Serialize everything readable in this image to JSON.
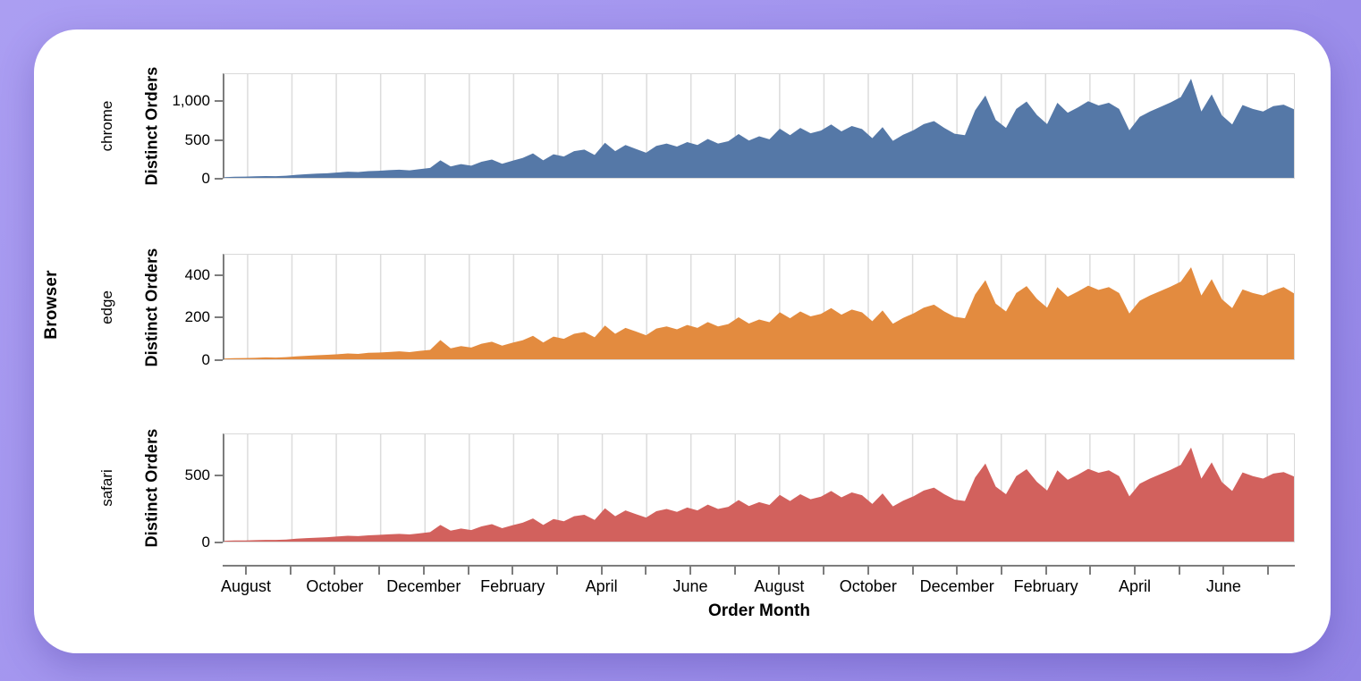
{
  "page": {
    "background_start": "#ab9ef2",
    "background_end": "#9385e6",
    "card_color": "#ffffff"
  },
  "chart_data": {
    "type": "area",
    "title": "",
    "facet_title": "Browser",
    "xlabel": "Order Month",
    "ylabel": "Distinct Orders",
    "point_interval": "weekly",
    "x_range_hint": "mid-July year 1 through mid-July year 3 (about 24.5 months)",
    "x_months_total": 24,
    "x_tick_labels": [
      "August",
      "October",
      "December",
      "February",
      "April",
      "June",
      "August",
      "October",
      "December",
      "February",
      "April",
      "June"
    ],
    "grid": "vertical month gridlines only",
    "legend_position": "none (facet labels on left)",
    "colors": {
      "gridline": "#dcdcdc",
      "axis": "#7d7d7d",
      "plot_border": "#d9d9d9",
      "text": "#000000"
    },
    "facets": [
      {
        "label": "chrome",
        "color": "#5578a7",
        "ylim": [
          0,
          1360
        ],
        "yticks": [
          {
            "value": 0,
            "label": "0"
          },
          {
            "value": 500,
            "label": "500"
          },
          {
            "value": 1000,
            "label": "1,000"
          }
        ],
        "values": [
          10,
          14,
          16,
          20,
          24,
          22,
          28,
          40,
          48,
          55,
          60,
          70,
          80,
          76,
          88,
          92,
          100,
          108,
          98,
          115,
          130,
          230,
          150,
          180,
          160,
          210,
          240,
          185,
          225,
          260,
          320,
          230,
          310,
          280,
          350,
          370,
          300,
          460,
          350,
          430,
          380,
          330,
          420,
          450,
          410,
          470,
          430,
          510,
          450,
          480,
          575,
          490,
          545,
          505,
          645,
          560,
          655,
          585,
          620,
          700,
          610,
          680,
          640,
          520,
          665,
          485,
          565,
          625,
          705,
          745,
          655,
          580,
          560,
          885,
          1080,
          760,
          655,
          905,
          1000,
          825,
          705,
          985,
          855,
          925,
          1005,
          950,
          985,
          905,
          625,
          800,
          870,
          930,
          990,
          1060,
          1300,
          870,
          1095,
          820,
          700,
          955,
          905,
          870,
          940,
          960,
          900
        ]
      },
      {
        "label": "edge",
        "color": "#e38b3f",
        "ylim": [
          0,
          500
        ],
        "yticks": [
          {
            "value": 0,
            "label": "0"
          },
          {
            "value": 200,
            "label": "200"
          },
          {
            "value": 400,
            "label": "400"
          }
        ],
        "values": [
          4,
          5,
          6,
          7,
          9,
          8,
          10,
          14,
          17,
          19,
          21,
          24,
          28,
          26,
          31,
          32,
          35,
          38,
          34,
          40,
          45,
          92,
          52,
          63,
          56,
          74,
          84,
          65,
          79,
          91,
          112,
          80,
          108,
          98,
          122,
          130,
          105,
          161,
          122,
          150,
          133,
          115,
          147,
          157,
          143,
          164,
          150,
          178,
          157,
          168,
          201,
          171,
          190,
          177,
          225,
          196,
          229,
          205,
          217,
          245,
          213,
          238,
          224,
          182,
          233,
          170,
          198,
          219,
          247,
          261,
          229,
          203,
          196,
          310,
          378,
          266,
          229,
          317,
          350,
          289,
          247,
          345,
          299,
          324,
          352,
          332,
          345,
          317,
          219,
          280,
          305,
          326,
          347,
          371,
          440,
          305,
          383,
          287,
          245,
          334,
          317,
          305,
          329,
          345,
          315
        ]
      },
      {
        "label": "safari",
        "color": "#d2615d",
        "ylim": [
          0,
          815
        ],
        "yticks": [
          {
            "value": 0,
            "label": "0"
          },
          {
            "value": 500,
            "label": "500"
          }
        ],
        "values": [
          6,
          8,
          9,
          11,
          13,
          12,
          15,
          22,
          26,
          30,
          33,
          39,
          44,
          42,
          48,
          51,
          55,
          59,
          54,
          63,
          72,
          127,
          83,
          99,
          88,
          116,
          132,
          102,
          124,
          143,
          176,
          127,
          171,
          154,
          193,
          204,
          165,
          253,
          193,
          237,
          209,
          182,
          231,
          248,
          226,
          259,
          237,
          281,
          248,
          264,
          316,
          270,
          300,
          278,
          355,
          308,
          360,
          322,
          341,
          385,
          336,
          374,
          352,
          286,
          366,
          267,
          311,
          344,
          388,
          410,
          360,
          319,
          308,
          487,
          594,
          418,
          360,
          498,
          550,
          454,
          388,
          542,
          470,
          509,
          553,
          523,
          542,
          498,
          344,
          440,
          479,
          512,
          545,
          583,
          715,
          479,
          602,
          451,
          385,
          525,
          498,
          479,
          517,
          528,
          495
        ]
      }
    ]
  }
}
